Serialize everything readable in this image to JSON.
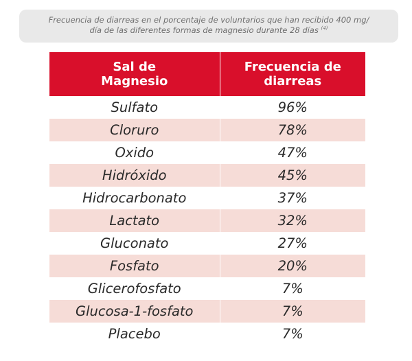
{
  "caption": {
    "line1": "Frecuencia de diarreas en el porcentaje de voluntarios que han recibido 400 mg/",
    "line2": "día de las diferentes formas de magnesio durante 28 días",
    "ref": "(4)"
  },
  "colors": {
    "header_bg": "#d90f2b",
    "stripe": "#f6dcd7",
    "caption_bg": "#e9e9e9"
  },
  "chart_data": {
    "type": "table",
    "columns": [
      {
        "line1": "Sal de",
        "line2": "Magnesio"
      },
      {
        "line1": "Frecuencia de",
        "line2": "diarreas"
      }
    ],
    "rows": [
      {
        "salt": "Sulfato",
        "freq": "96%"
      },
      {
        "salt": "Cloruro",
        "freq": "78%"
      },
      {
        "salt": "Oxido",
        "freq": "47%"
      },
      {
        "salt": "Hidróxido",
        "freq": "45%"
      },
      {
        "salt": "Hidrocarbonato",
        "freq": "37%"
      },
      {
        "salt": "Lactato",
        "freq": "32%"
      },
      {
        "salt": "Gluconato",
        "freq": "27%"
      },
      {
        "salt": "Fosfato",
        "freq": "20%"
      },
      {
        "salt": "Glicerofosfato",
        "freq": "7%"
      },
      {
        "salt": "Glucosa-1-fosfato",
        "freq": "7%"
      },
      {
        "salt": "Placebo",
        "freq": "7%"
      }
    ]
  }
}
